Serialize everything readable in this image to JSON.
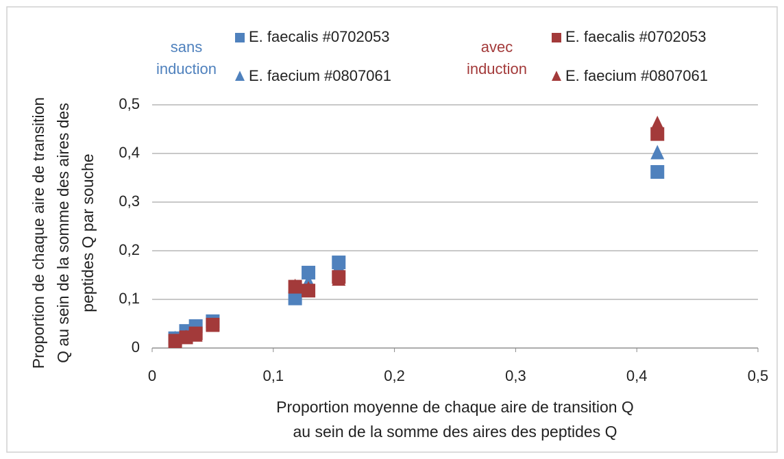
{
  "chart_data": {
    "type": "scatter",
    "x_label": [
      "Proportion moyenne de chaque aire de transition Q",
      "au sein de la somme des aires des peptides Q"
    ],
    "y_label": [
      "Proportion de chaque aire de transition",
      "Q au sein de la somme des aires des",
      "peptides Q par souche"
    ],
    "groups": [
      {
        "label": [
          "sans",
          "induction"
        ],
        "color": "#4f81bd"
      },
      {
        "label": [
          "avec",
          "induction"
        ],
        "color": "#a33a3a"
      }
    ],
    "x": [
      0.019,
      0.028,
      0.036,
      0.05,
      0.118,
      0.129,
      0.154,
      0.417
    ],
    "series": [
      {
        "name": "E. faecalis #0702053",
        "color": "#4f81bd",
        "marker": "square",
        "values": [
          0.02,
          0.035,
          0.045,
          0.055,
          0.102,
          0.155,
          0.176,
          0.362
        ]
      },
      {
        "name": "E. faecium #0807061",
        "color": "#4f81bd",
        "marker": "triangle",
        "values": [
          0.018,
          0.03,
          0.04,
          0.05,
          0.12,
          0.135,
          0.165,
          0.4
        ]
      },
      {
        "name": "E. faecalis #0702053",
        "color": "#a33a3a",
        "marker": "square",
        "values": [
          0.015,
          0.022,
          0.03,
          0.048,
          0.126,
          0.118,
          0.146,
          0.44
        ]
      },
      {
        "name": "E. faecium #0807061",
        "color": "#a33a3a",
        "marker": "triangle",
        "values": [
          0.012,
          0.02,
          0.025,
          0.045,
          0.125,
          0.12,
          0.14,
          0.46
        ]
      }
    ],
    "xlim": [
      0,
      0.5
    ],
    "ylim": [
      0,
      0.5
    ],
    "xticks": [
      0,
      {
        "value": 0.1,
        "label": "0,1"
      },
      {
        "value": 0.2,
        "label": "0,2"
      },
      {
        "value": 0.3,
        "label": "0,3"
      },
      {
        "value": 0.4,
        "label": "0,4"
      },
      {
        "value": 0.5,
        "label": "0,5"
      }
    ],
    "yticks": [
      0,
      {
        "value": 0.1,
        "label": "0,1"
      },
      {
        "value": 0.2,
        "label": "0,2"
      },
      {
        "value": 0.3,
        "label": "0,3"
      },
      {
        "value": 0.4,
        "label": "0,4"
      },
      {
        "value": 0.5,
        "label": "0,5"
      }
    ],
    "grid": true
  }
}
